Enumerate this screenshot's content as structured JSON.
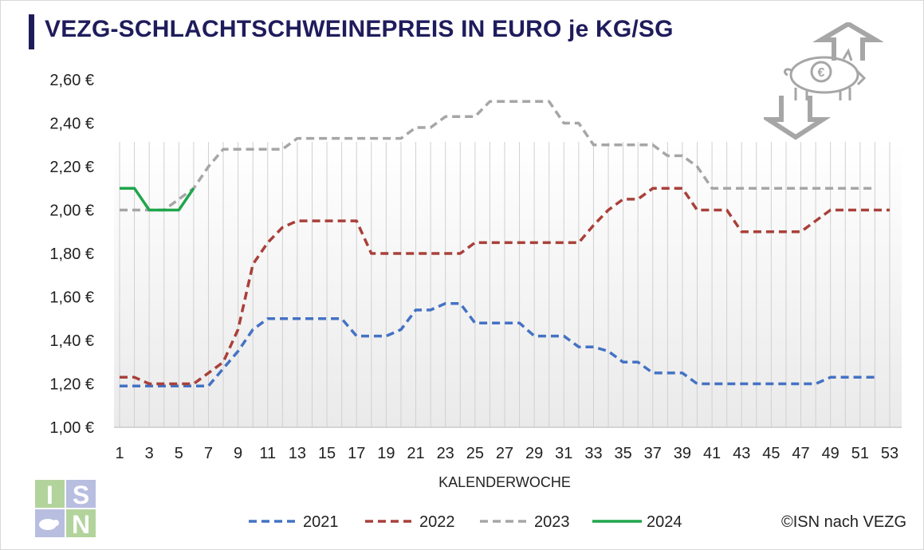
{
  "title": "VEZG-SCHLACHTSCHWEINEPREIS IN EURO je KG/SG",
  "copyright": "©ISN nach VEZG",
  "logo": {
    "letters": [
      "I",
      "S",
      "N"
    ],
    "icon": "isn-logo-icon"
  },
  "decor_icon": "pig-euro-price-arrows-icon",
  "colors": {
    "title": "#1f1c5c",
    "s2021": "#4472c4",
    "s2022": "#a9403a",
    "s2023": "#a6a6a6",
    "s2024": "#1ea64b",
    "grid": "#d0d0d0"
  },
  "chart_data": {
    "type": "line",
    "title": "VEZG-SCHLACHTSCHWEINEPREIS IN EURO je KG/SG",
    "xlabel": "KALENDERWOCHE",
    "ylabel": "",
    "x_ticks": [
      "1",
      "3",
      "5",
      "7",
      "9",
      "11",
      "13",
      "15",
      "17",
      "19",
      "21",
      "23",
      "25",
      "27",
      "29",
      "31",
      "33",
      "35",
      "37",
      "39",
      "41",
      "43",
      "45",
      "47",
      "49",
      "51",
      "53"
    ],
    "y_ticks": [
      "1,00 €",
      "1,20 €",
      "1,40 €",
      "1,60 €",
      "1,80 €",
      "2,00 €",
      "2,20 €",
      "2,40 €",
      "2,60 €"
    ],
    "xlim": [
      1,
      53
    ],
    "ylim": [
      1.0,
      2.6
    ],
    "grid": "vertical",
    "legend": "bottom",
    "series": [
      {
        "name": "2021",
        "style": "dashed",
        "color": "#4472c4",
        "values": [
          1.19,
          1.19,
          1.19,
          1.19,
          1.19,
          1.19,
          1.19,
          1.27,
          1.35,
          1.45,
          1.5,
          1.5,
          1.5,
          1.5,
          1.5,
          1.5,
          1.42,
          1.42,
          1.42,
          1.45,
          1.54,
          1.54,
          1.57,
          1.57,
          1.48,
          1.48,
          1.48,
          1.48,
          1.42,
          1.42,
          1.42,
          1.37,
          1.37,
          1.35,
          1.3,
          1.3,
          1.25,
          1.25,
          1.25,
          1.2,
          1.2,
          1.2,
          1.2,
          1.2,
          1.2,
          1.2,
          1.2,
          1.2,
          1.23,
          1.23,
          1.23,
          1.23
        ]
      },
      {
        "name": "2022",
        "style": "dashed",
        "color": "#a9403a",
        "values": [
          1.23,
          1.23,
          1.2,
          1.2,
          1.2,
          1.2,
          1.25,
          1.3,
          1.45,
          1.75,
          1.85,
          1.92,
          1.95,
          1.95,
          1.95,
          1.95,
          1.95,
          1.8,
          1.8,
          1.8,
          1.8,
          1.8,
          1.8,
          1.8,
          1.85,
          1.85,
          1.85,
          1.85,
          1.85,
          1.85,
          1.85,
          1.85,
          1.93,
          2.0,
          2.05,
          2.05,
          2.1,
          2.1,
          2.1,
          2.0,
          2.0,
          2.0,
          1.9,
          1.9,
          1.9,
          1.9,
          1.9,
          1.95,
          2.0,
          2.0,
          2.0,
          2.0,
          2.0
        ]
      },
      {
        "name": "2023",
        "style": "dashed",
        "color": "#a6a6a6",
        "values": [
          2.0,
          2.0,
          2.0,
          2.0,
          2.05,
          2.1,
          2.2,
          2.28,
          2.28,
          2.28,
          2.28,
          2.28,
          2.33,
          2.33,
          2.33,
          2.33,
          2.33,
          2.33,
          2.33,
          2.33,
          2.38,
          2.38,
          2.43,
          2.43,
          2.43,
          2.5,
          2.5,
          2.5,
          2.5,
          2.5,
          2.4,
          2.4,
          2.3,
          2.3,
          2.3,
          2.3,
          2.3,
          2.25,
          2.25,
          2.2,
          2.1,
          2.1,
          2.1,
          2.1,
          2.1,
          2.1,
          2.1,
          2.1,
          2.1,
          2.1,
          2.1,
          2.1
        ]
      },
      {
        "name": "2024",
        "style": "solid",
        "color": "#1ea64b",
        "values": [
          2.1,
          2.1,
          2.0,
          2.0,
          2.0,
          2.1
        ]
      }
    ]
  }
}
